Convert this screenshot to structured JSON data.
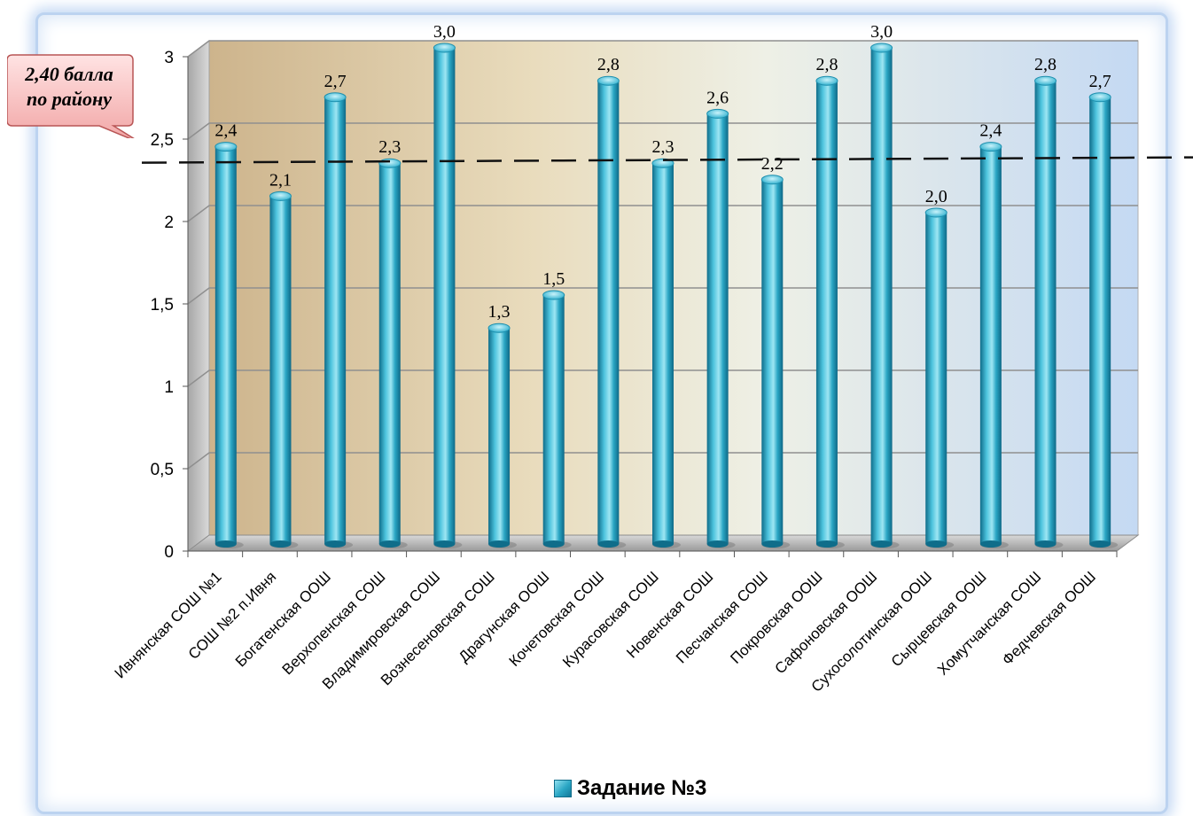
{
  "chart_data": {
    "type": "bar",
    "categories": [
      "Ивнянская СОШ №1",
      "СОШ №2 п.Ивня",
      "Богатенская ООШ",
      "Верхопенская СОШ",
      "Владимировская СОШ",
      "Вознесеновская СОШ",
      "Драгунская ООШ",
      "Кочетовская СОШ",
      "Курасовская СОШ",
      "Новенская СОШ",
      "Песчанская СОШ",
      "Покровская ООШ",
      "Сафоновская ООШ",
      "Сухосолотинская ООШ",
      "Сырцевская ООШ",
      "Хомутчанская СОШ",
      "Федчевская ООШ"
    ],
    "series": [
      {
        "name": "Задание №3",
        "values": [
          2.4,
          2.1,
          2.7,
          2.3,
          3.0,
          1.3,
          1.5,
          2.8,
          2.3,
          2.6,
          2.2,
          2.8,
          3.0,
          2.0,
          2.4,
          2.8,
          2.7
        ]
      }
    ],
    "data_labels": [
      "2,4",
      "2,1",
      "2,7",
      "2,3",
      "3,0",
      "1,3",
      "1,5",
      "2,8",
      "2,3",
      "2,6",
      "2,2",
      "2,8",
      "3,0",
      "2,0",
      "2,4",
      "2,8",
      "2,7"
    ],
    "y_ticks": [
      "0",
      "0,5",
      "1",
      "1,5",
      "2",
      "2,5",
      "3"
    ],
    "ylim": [
      0,
      3
    ],
    "reference_line": {
      "value": 2.4,
      "label": "2,40 балла по району",
      "style": "dashed"
    },
    "grid": true,
    "legend_position": "bottom",
    "colors": {
      "bar": "#2aa6c4",
      "bar_dark": "#13799a",
      "bar_light": "#8fe0f0",
      "callout": "#f7b8b8"
    }
  },
  "callout": {
    "line1": "2,40 балла",
    "line2": "по району"
  },
  "legend": {
    "label": "Задание №3"
  }
}
